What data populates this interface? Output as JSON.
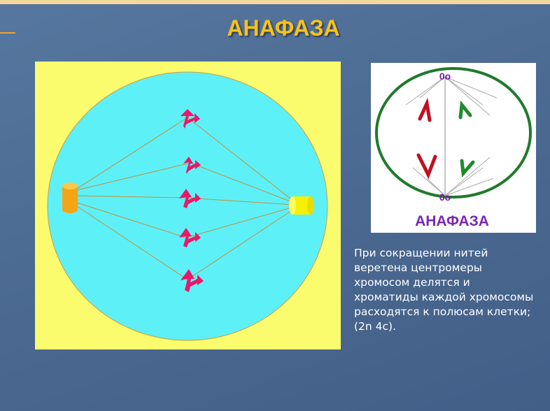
{
  "title": "АНАФАЗА",
  "figure_label": "АНАФАЗА",
  "description": [
    "При сокращении нитей",
    "веретена центромеры",
    "хромосом делятся и",
    "хроматиды каждой хромосомы",
    "расходятся к полюсам клетки;",
    "(2n 4c)."
  ]
}
